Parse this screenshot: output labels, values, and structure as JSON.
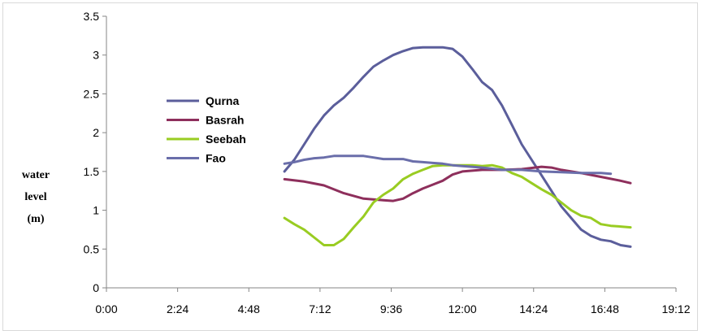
{
  "chart_data": {
    "type": "line",
    "title": "",
    "xlabel": "",
    "ylabel": "water level (m)",
    "ylabel_lines": [
      "water",
      "level",
      "(m)"
    ],
    "xlim": [
      "0:00",
      "19:12"
    ],
    "ylim": [
      0,
      3.5
    ],
    "x_ticks": [
      "0:00",
      "2:24",
      "4:48",
      "7:12",
      "9:36",
      "12:00",
      "14:24",
      "16:48",
      "19:12"
    ],
    "y_ticks": [
      "0",
      "0.5",
      "1",
      "1.5",
      "2",
      "2.5",
      "3",
      "3.5"
    ],
    "grid": false,
    "legend_position": "left",
    "series": [
      {
        "name": "Qurna",
        "color": "#5b5e9b",
        "points": [
          [
            "6:00",
            1.5
          ],
          [
            "6:20",
            1.65
          ],
          [
            "6:40",
            1.85
          ],
          [
            "7:00",
            2.05
          ],
          [
            "7:20",
            2.22
          ],
          [
            "7:40",
            2.35
          ],
          [
            "8:00",
            2.45
          ],
          [
            "8:20",
            2.58
          ],
          [
            "8:40",
            2.72
          ],
          [
            "9:00",
            2.85
          ],
          [
            "9:20",
            2.93
          ],
          [
            "9:40",
            3.0
          ],
          [
            "10:00",
            3.05
          ],
          [
            "10:20",
            3.09
          ],
          [
            "10:40",
            3.1
          ],
          [
            "11:00",
            3.1
          ],
          [
            "11:20",
            3.1
          ],
          [
            "11:40",
            3.08
          ],
          [
            "12:00",
            2.98
          ],
          [
            "12:20",
            2.82
          ],
          [
            "12:40",
            2.65
          ],
          [
            "13:00",
            2.55
          ],
          [
            "13:20",
            2.35
          ],
          [
            "13:40",
            2.1
          ],
          [
            "14:00",
            1.85
          ],
          [
            "14:20",
            1.65
          ],
          [
            "14:40",
            1.45
          ],
          [
            "15:00",
            1.25
          ],
          [
            "15:20",
            1.05
          ],
          [
            "15:40",
            0.9
          ],
          [
            "16:00",
            0.75
          ],
          [
            "16:20",
            0.67
          ],
          [
            "16:40",
            0.62
          ],
          [
            "17:00",
            0.6
          ],
          [
            "17:20",
            0.55
          ],
          [
            "17:40",
            0.53
          ]
        ]
      },
      {
        "name": "Basrah",
        "color": "#8e2f5c",
        "points": [
          [
            "6:00",
            1.4
          ],
          [
            "6:40",
            1.37
          ],
          [
            "7:20",
            1.32
          ],
          [
            "8:00",
            1.22
          ],
          [
            "8:40",
            1.15
          ],
          [
            "9:20",
            1.13
          ],
          [
            "9:40",
            1.12
          ],
          [
            "10:00",
            1.15
          ],
          [
            "10:20",
            1.22
          ],
          [
            "10:40",
            1.28
          ],
          [
            "11:00",
            1.33
          ],
          [
            "11:20",
            1.38
          ],
          [
            "11:40",
            1.46
          ],
          [
            "12:00",
            1.5
          ],
          [
            "12:40",
            1.52
          ],
          [
            "13:20",
            1.52
          ],
          [
            "14:00",
            1.53
          ],
          [
            "14:40",
            1.56
          ],
          [
            "15:00",
            1.55
          ],
          [
            "15:20",
            1.52
          ],
          [
            "16:00",
            1.48
          ],
          [
            "16:40",
            1.43
          ],
          [
            "17:20",
            1.38
          ],
          [
            "17:40",
            1.35
          ]
        ]
      },
      {
        "name": "Seebah",
        "color": "#99cc22",
        "points": [
          [
            "6:00",
            0.9
          ],
          [
            "6:20",
            0.82
          ],
          [
            "6:40",
            0.75
          ],
          [
            "7:00",
            0.65
          ],
          [
            "7:20",
            0.55
          ],
          [
            "7:40",
            0.55
          ],
          [
            "8:00",
            0.63
          ],
          [
            "8:20",
            0.78
          ],
          [
            "8:40",
            0.92
          ],
          [
            "9:00",
            1.1
          ],
          [
            "9:20",
            1.2
          ],
          [
            "9:40",
            1.28
          ],
          [
            "10:00",
            1.4
          ],
          [
            "10:20",
            1.47
          ],
          [
            "10:40",
            1.52
          ],
          [
            "11:00",
            1.57
          ],
          [
            "11:20",
            1.58
          ],
          [
            "11:40",
            1.58
          ],
          [
            "12:00",
            1.58
          ],
          [
            "12:20",
            1.58
          ],
          [
            "12:40",
            1.57
          ],
          [
            "13:00",
            1.58
          ],
          [
            "13:20",
            1.55
          ],
          [
            "13:40",
            1.48
          ],
          [
            "14:00",
            1.43
          ],
          [
            "14:20",
            1.35
          ],
          [
            "14:40",
            1.27
          ],
          [
            "15:00",
            1.2
          ],
          [
            "15:20",
            1.1
          ],
          [
            "15:40",
            1.0
          ],
          [
            "16:00",
            0.93
          ],
          [
            "16:20",
            0.9
          ],
          [
            "16:40",
            0.82
          ],
          [
            "17:00",
            0.8
          ],
          [
            "17:20",
            0.79
          ],
          [
            "17:40",
            0.78
          ]
        ]
      },
      {
        "name": "Fao",
        "color": "#6a6eaa",
        "points": [
          [
            "6:00",
            1.6
          ],
          [
            "6:20",
            1.62
          ],
          [
            "6:40",
            1.65
          ],
          [
            "7:00",
            1.67
          ],
          [
            "7:20",
            1.68
          ],
          [
            "7:40",
            1.7
          ],
          [
            "8:00",
            1.7
          ],
          [
            "8:20",
            1.7
          ],
          [
            "8:40",
            1.7
          ],
          [
            "9:00",
            1.68
          ],
          [
            "9:20",
            1.66
          ],
          [
            "9:40",
            1.66
          ],
          [
            "10:00",
            1.66
          ],
          [
            "10:20",
            1.63
          ],
          [
            "10:40",
            1.62
          ],
          [
            "11:00",
            1.61
          ],
          [
            "11:20",
            1.6
          ],
          [
            "11:40",
            1.58
          ],
          [
            "12:00",
            1.57
          ],
          [
            "12:40",
            1.55
          ],
          [
            "13:20",
            1.52
          ],
          [
            "14:00",
            1.52
          ],
          [
            "14:40",
            1.5
          ],
          [
            "15:20",
            1.49
          ],
          [
            "16:00",
            1.48
          ],
          [
            "16:40",
            1.48
          ],
          [
            "17:00",
            1.47
          ]
        ]
      }
    ]
  }
}
